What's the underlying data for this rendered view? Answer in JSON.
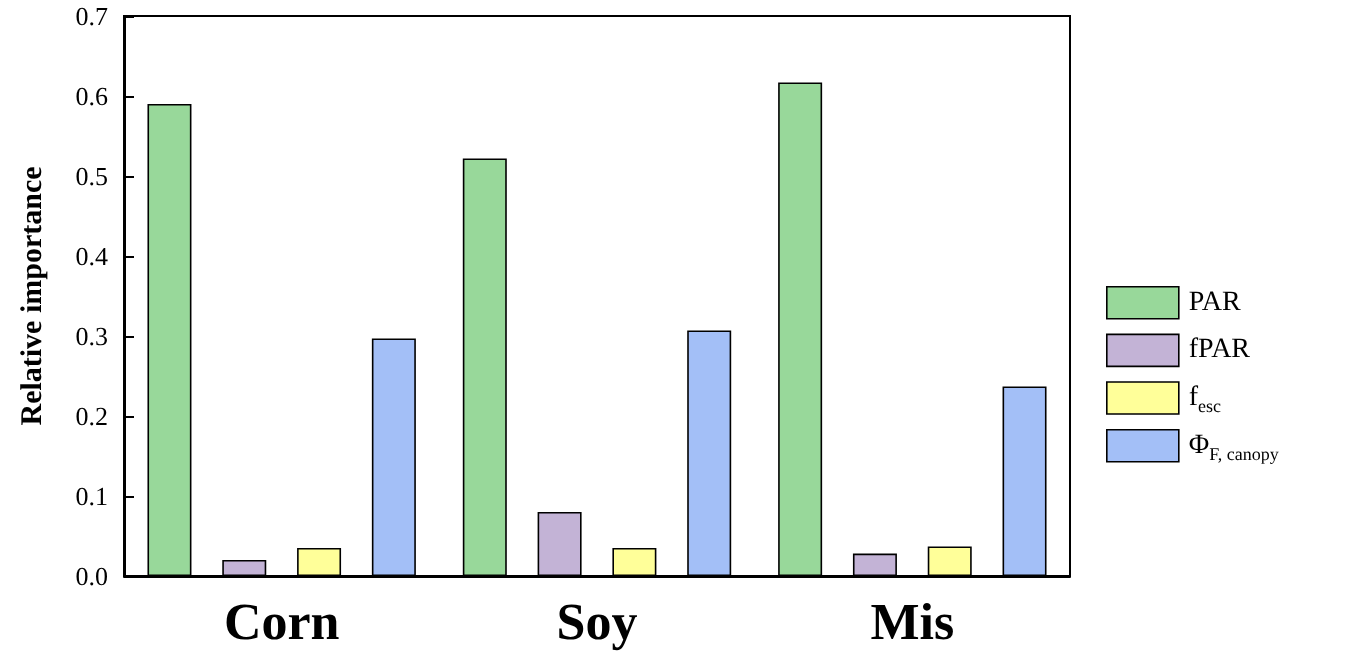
{
  "chart_data": {
    "type": "bar",
    "ylabel": "Relative importance",
    "categories": [
      "Corn",
      "Soy",
      "Mis"
    ],
    "series": [
      {
        "name": "PAR",
        "color": "#98d89a",
        "values": [
          0.59,
          0.522,
          0.617
        ]
      },
      {
        "name": "fPAR",
        "color": "#c3b3d6",
        "values": [
          0.02,
          0.08,
          0.028
        ]
      },
      {
        "name": "f$_{esc}$",
        "color": "#ffff99",
        "values": [
          0.035,
          0.035,
          0.037
        ]
      },
      {
        "name": "Φ$_{F, canopy}$",
        "color": "#a3bff7",
        "values": [
          0.297,
          0.307,
          0.237
        ]
      }
    ],
    "ylim": [
      0,
      0.7
    ],
    "yticks": [
      {
        "value": 0,
        "label": "0.0"
      },
      0.1,
      0.2,
      0.3,
      0.4,
      0.5,
      0.6,
      0.7
    ],
    "grid": false,
    "legend": "right"
  }
}
